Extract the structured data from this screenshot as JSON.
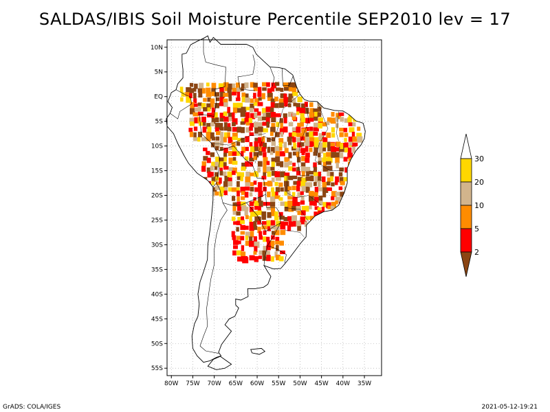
{
  "title": "SALDAS/IBIS Soil Moisture Percentile SEP2010 lev = 17",
  "footer": {
    "left": "GrADS: COLA/IGES",
    "right": "2021-05-12-19:21"
  },
  "map": {
    "lat_labels": [
      "10N",
      "5N",
      "EQ",
      "5S",
      "10S",
      "15S",
      "20S",
      "25S",
      "30S",
      "35S",
      "40S",
      "45S",
      "50S",
      "55S"
    ],
    "lon_labels": [
      "80W",
      "75W",
      "70W",
      "65W",
      "60W",
      "55W",
      "50W",
      "45W",
      "40W",
      "35W"
    ],
    "gridlines": "dotted",
    "projection": "lat-lon"
  },
  "colorbar": {
    "labels": [
      "2",
      "5",
      "10",
      "20",
      "30"
    ],
    "colors": [
      "#8B4513",
      "#FF0000",
      "#FF8C00",
      "#D2B48C",
      "#FFD700",
      "#FFFFFF"
    ],
    "placement": "right"
  },
  "colors": {
    "very_dry": "#8B4513",
    "dry": "#FF0000",
    "moderate": "#FF8C00",
    "light": "#D2B48C",
    "slight": "#FFD700",
    "none": "#FFFFFF"
  }
}
